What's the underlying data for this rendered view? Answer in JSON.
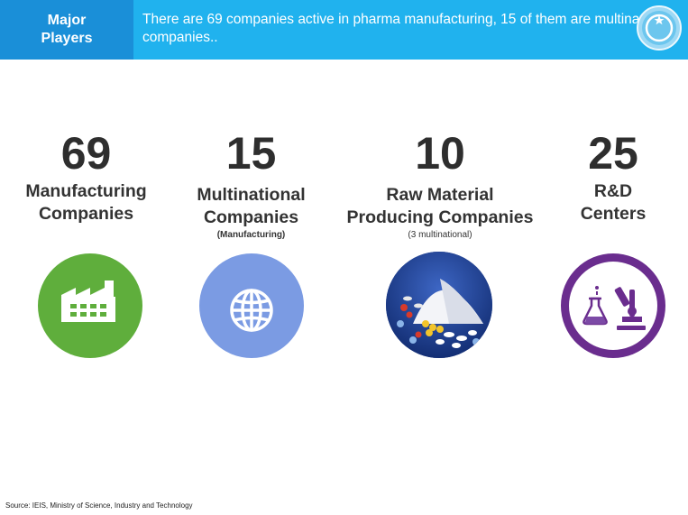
{
  "header": {
    "label": "Major\nPlayers",
    "text": "There are 69 companies active in pharma manufacturing, 15 of them are multinational companies.."
  },
  "stats": [
    {
      "number": "69",
      "label": "Manufacturing\nCompanies",
      "sub": "",
      "icon": "factory-icon",
      "color": "#5fae3c"
    },
    {
      "number": "15",
      "label": "Multinational\nCompanies",
      "sub": "(Manufacturing)",
      "icon": "globe-icon",
      "color": "#7b9be3"
    },
    {
      "number": "10",
      "label": "Raw Material\nProducing Companies",
      "sub": "(3 multinational)",
      "icon": "pills-photo",
      "color": "#1f3f8f"
    },
    {
      "number": "25",
      "label": "R&D\nCenters",
      "sub": "",
      "icon": "lab-microscope-icon",
      "color": "#6a2d8e"
    }
  ],
  "source": "Source: IEIS, Ministry of Science, Industry and Technology"
}
